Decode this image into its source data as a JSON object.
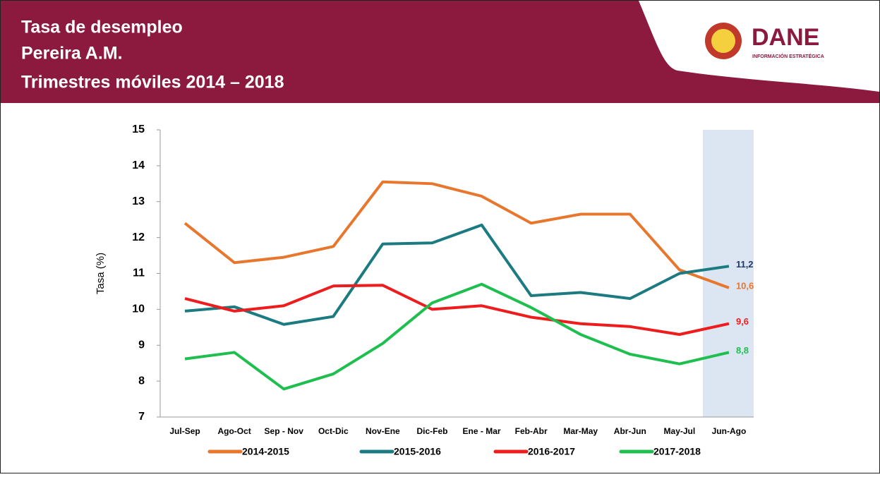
{
  "header": {
    "title_lines": [
      "Tasa de desempleo",
      "Pereira A.M.",
      "Trimestres móviles 2014 – 2018"
    ],
    "logo": "DANE",
    "logo_subtitle": "INFORMACIÓN ESTRATÉGICA"
  },
  "chart_data": {
    "type": "line",
    "ylabel": "Tasa (%)",
    "categories": [
      "Jul-Sep",
      "Ago-Oct",
      "Sep - Nov",
      "Oct-Dic",
      "Nov-Ene",
      "Dic-Feb",
      "Ene - Mar",
      "Feb-Abr",
      "Mar-May",
      "Abr-Jun",
      "May-Jul",
      "Jun-Ago"
    ],
    "ylim": [
      7,
      15
    ],
    "yticks": [
      7,
      8,
      9,
      10,
      11,
      12,
      13,
      14,
      15
    ],
    "grid": false,
    "series": [
      {
        "name": "2014-2015",
        "color": "#e8772e",
        "label_color": "#e8772e",
        "values": [
          12.4,
          11.3,
          11.45,
          11.75,
          13.55,
          13.5,
          13.15,
          12.4,
          12.65,
          12.65,
          11.1,
          10.6
        ],
        "value_labels": [
          null,
          null,
          null,
          null,
          null,
          null,
          null,
          null,
          null,
          null,
          null,
          "10,6"
        ]
      },
      {
        "name": "2015-2016",
        "color": "#1b7b80",
        "label_color": "#1f3864",
        "values": [
          9.95,
          10.07,
          9.58,
          9.8,
          11.82,
          11.85,
          12.35,
          10.38,
          10.47,
          10.3,
          11.0,
          11.2
        ],
        "value_labels": [
          null,
          null,
          null,
          null,
          null,
          null,
          null,
          null,
          null,
          null,
          null,
          "11,2"
        ]
      },
      {
        "name": "2016-2017",
        "color": "#ee1c1c",
        "label_color": "#ee1c1c",
        "values": [
          10.3,
          9.95,
          10.1,
          10.65,
          10.67,
          10.0,
          10.1,
          9.78,
          9.6,
          9.52,
          9.3,
          9.6
        ],
        "value_labels": [
          null,
          null,
          null,
          null,
          null,
          null,
          null,
          null,
          null,
          null,
          null,
          "9,6"
        ]
      },
      {
        "name": "2017-2018",
        "color": "#1fbf4f",
        "label_color": "#1fbf4f",
        "values": [
          8.62,
          8.8,
          7.78,
          8.2,
          9.05,
          10.18,
          10.7,
          10.05,
          9.3,
          8.75,
          8.48,
          8.8
        ],
        "value_labels": [
          null,
          null,
          null,
          null,
          null,
          null,
          null,
          null,
          null,
          null,
          null,
          "8,8"
        ]
      }
    ]
  }
}
